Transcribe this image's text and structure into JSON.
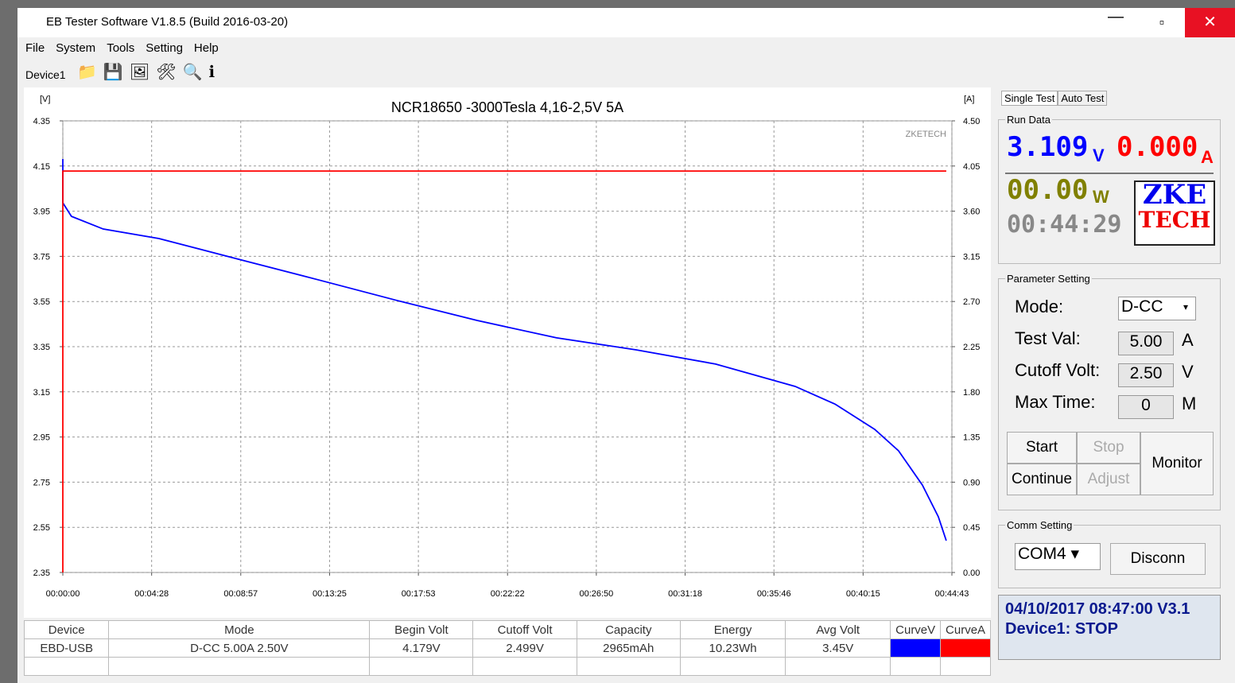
{
  "window": {
    "title": "EB Tester Software V1.8.5 (Build 2016-03-20)"
  },
  "menu": [
    "File",
    "System",
    "Tools",
    "Setting",
    "Help"
  ],
  "device_tab": "Device1",
  "chart_data": {
    "type": "line",
    "title": "NCR18650 -3000Tesla 4,16-2,5V 5A",
    "y_label": "[V]",
    "y2_label": "[A]",
    "watermark": "ZKETECH",
    "grid": true,
    "xlim": [
      0,
      2683
    ],
    "xticks": [
      {
        "value": 0,
        "label": "00:00:00"
      },
      {
        "value": 268,
        "label": "00:04:28"
      },
      {
        "value": 537,
        "label": "00:08:57"
      },
      {
        "value": 805,
        "label": "00:13:25"
      },
      {
        "value": 1073,
        "label": "00:17:53"
      },
      {
        "value": 1342,
        "label": "00:22:22"
      },
      {
        "value": 1610,
        "label": "00:26:50"
      },
      {
        "value": 1878,
        "label": "00:31:18"
      },
      {
        "value": 2146,
        "label": "00:35:46"
      },
      {
        "value": 2415,
        "label": "00:40:15"
      },
      {
        "value": 2683,
        "label": "00:44:43"
      }
    ],
    "ylim": [
      2.35,
      4.35
    ],
    "yticks": [
      2.35,
      2.55,
      2.75,
      2.95,
      3.15,
      3.35,
      3.55,
      3.75,
      3.95,
      4.15,
      4.35
    ],
    "y2lim": [
      0,
      4.5
    ],
    "y2ticks": [
      {
        "value": 0,
        "label": "0.00"
      },
      0.45,
      {
        "value": 0.9,
        "label": "0.90"
      },
      1.35,
      {
        "value": 1.8,
        "label": "1.80"
      },
      2.25,
      {
        "value": 2.7,
        "label": "2.70"
      },
      3.15,
      {
        "value": 3.6,
        "label": "3.60"
      },
      4.05,
      {
        "value": 4.5,
        "label": "4.50"
      }
    ],
    "series": [
      {
        "name": "CurveV",
        "color": "#0000ff",
        "x": [
          0,
          0,
          26,
          122,
          290,
          531,
          771,
          1010,
          1250,
          1490,
          1730,
          1970,
          2210,
          2330,
          2450,
          2522,
          2594,
          2642,
          2666
        ],
        "values": [
          4.181,
          3.987,
          3.927,
          3.871,
          3.829,
          3.737,
          3.646,
          3.554,
          3.466,
          3.389,
          3.336,
          3.273,
          3.174,
          3.096,
          2.984,
          2.889,
          2.737,
          2.597,
          2.491
        ]
      },
      {
        "name": "CurveA",
        "color": "#ff0000",
        "axis": "y2",
        "x": [
          0,
          0,
          2666
        ],
        "values": [
          0,
          4.0,
          4.0
        ]
      }
    ]
  },
  "tabs": [
    "Single Test",
    "Auto Test"
  ],
  "run_data": {
    "title": "Run Data",
    "voltage": "3.109",
    "voltage_unit": "V",
    "current": "0.000",
    "current_unit": "A",
    "power": "00.00",
    "power_unit": "W",
    "time": "00:44:29",
    "logo_top": "ZKE",
    "logo_bottom": "TECH"
  },
  "parameter_setting": {
    "title": "Parameter Setting",
    "rows": [
      [
        "Mode:",
        "D-CC"
      ],
      [
        "Test Val:",
        "5.00",
        "A"
      ],
      [
        "Cutoff Volt:",
        "2.50",
        "V"
      ],
      [
        "Max Time:",
        "0",
        "M"
      ]
    ],
    "buttons": [
      "Start",
      "Stop",
      "Continue",
      "Adjust",
      "Monitor"
    ]
  },
  "comm_setting": {
    "title": "Comm Setting",
    "port": "COM4",
    "button": "Disconn"
  },
  "status": [
    "04/10/2017 08:47:00  V3.1",
    "Device1: STOP"
  ],
  "table": {
    "headers": [
      "Device",
      "Mode",
      "Begin Volt",
      "Cutoff Volt",
      "Capacity",
      "Energy",
      "Avg Volt",
      "CurveV",
      "CurveA"
    ],
    "rows": [
      [
        "EBD-USB",
        "D-CC  5.00A  2.50V",
        "4.179V",
        "2.499V",
        "2965mAh",
        "10.23Wh",
        "3.45V"
      ]
    ]
  }
}
